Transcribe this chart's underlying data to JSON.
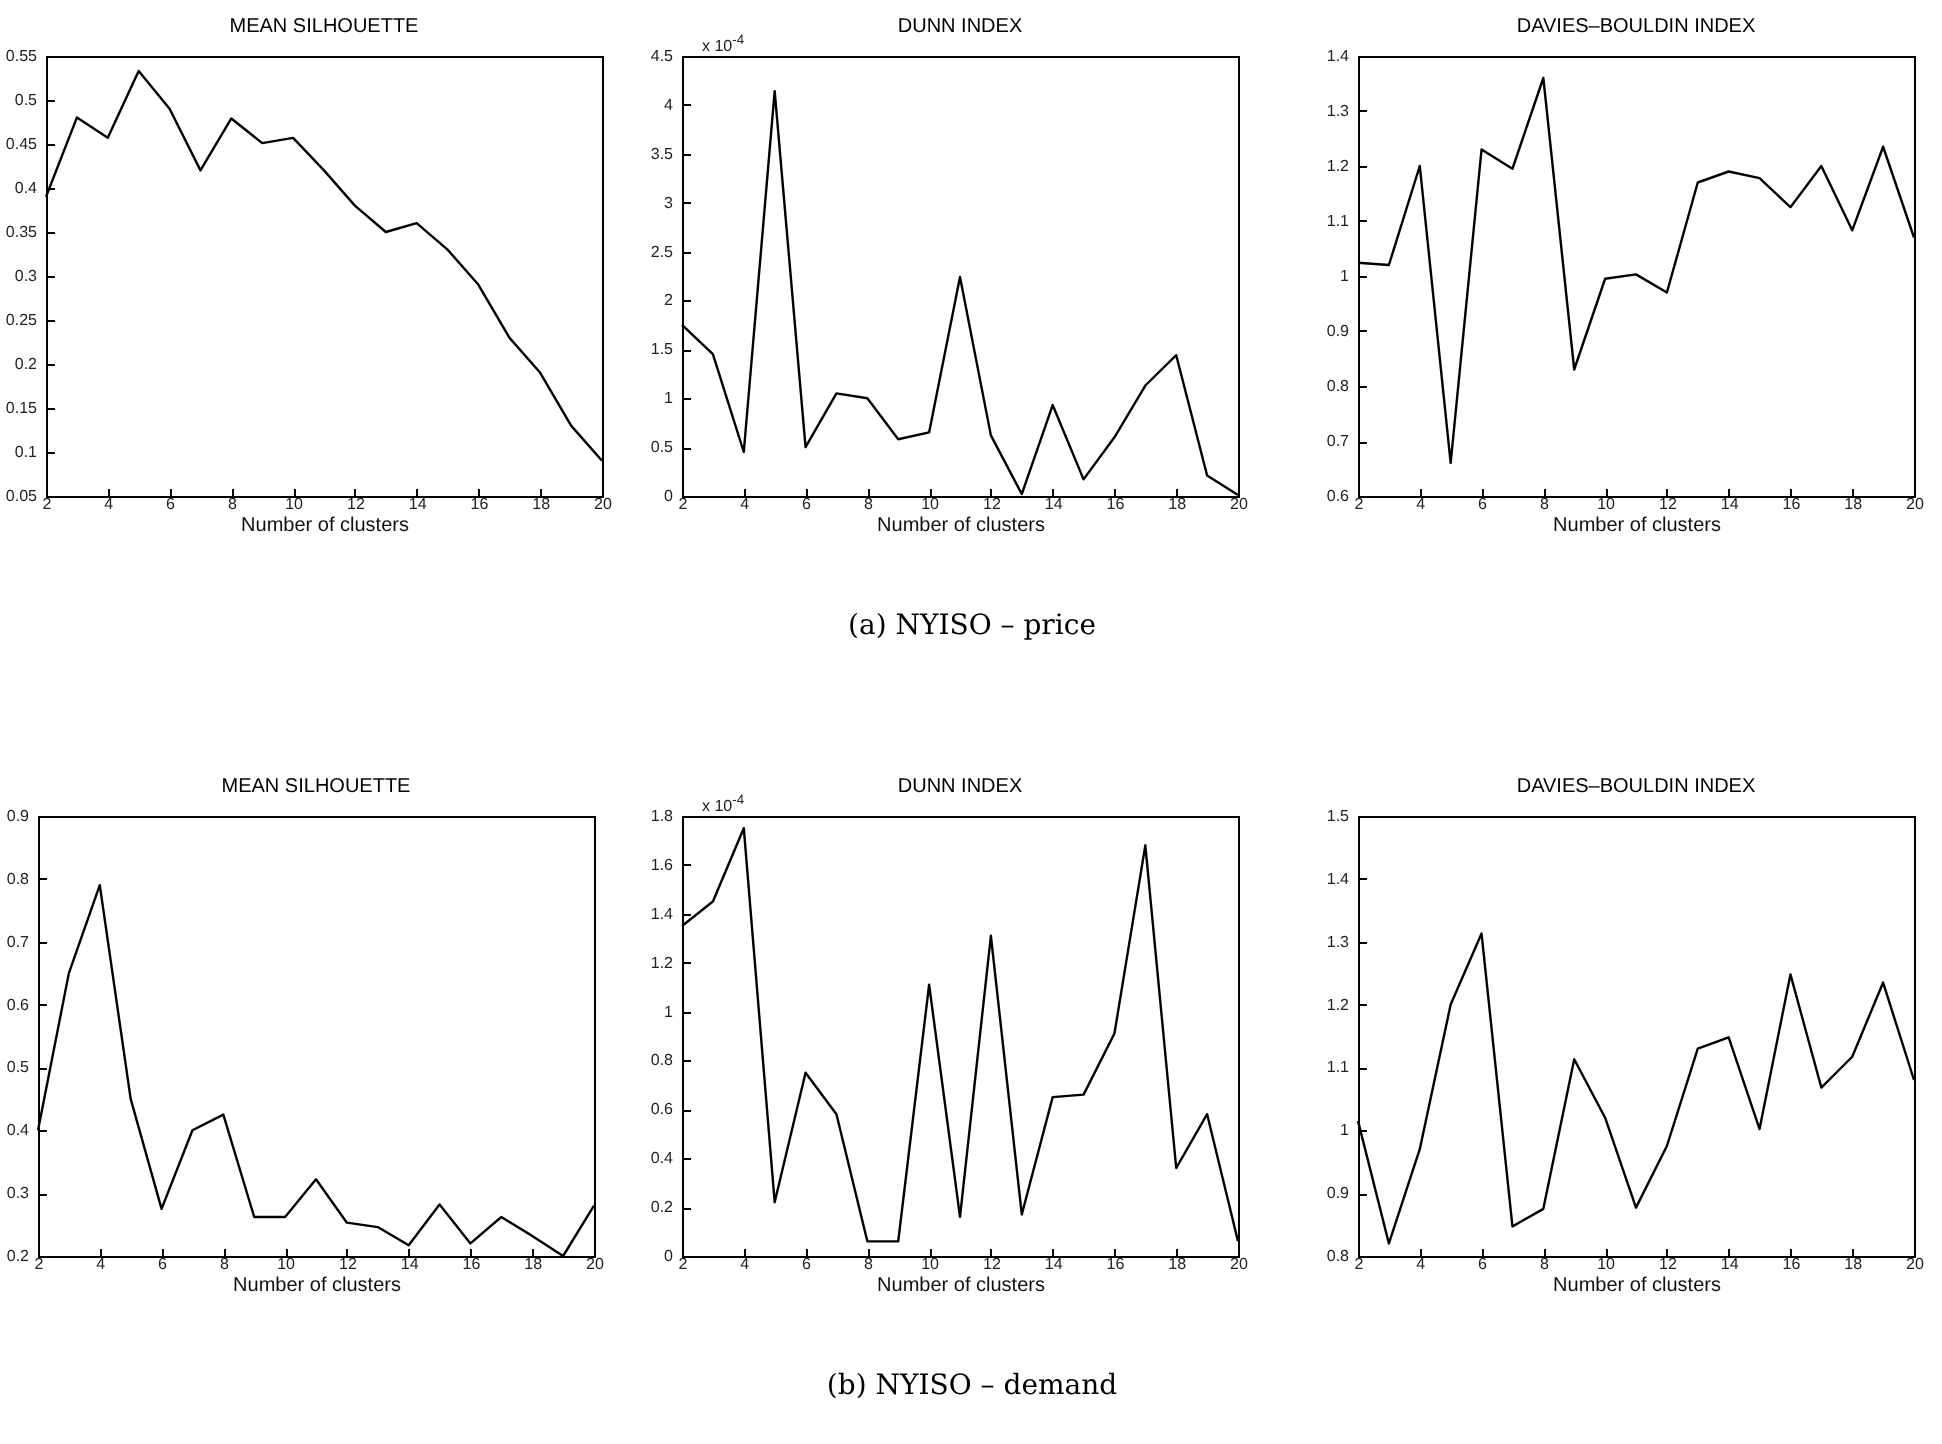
{
  "chart_data": [
    {
      "type": "line",
      "title": "MEAN SILHOUETTE",
      "xlabel": "Number of clusters",
      "x": [
        2,
        3,
        4,
        5,
        6,
        7,
        8,
        9,
        10,
        11,
        12,
        13,
        14,
        15,
        16,
        17,
        18,
        19,
        20
      ],
      "xlim": [
        2,
        20
      ],
      "xticks": [
        2,
        4,
        6,
        8,
        10,
        12,
        14,
        16,
        18,
        20
      ],
      "ylim": [
        0.05,
        0.55
      ],
      "yticks": [
        0.05,
        0.1,
        0.15,
        0.2,
        0.25,
        0.3,
        0.35,
        0.4,
        0.45,
        0.5,
        0.55
      ],
      "series": [
        {
          "color": "#000000",
          "values": [
            0.39,
            0.48,
            0.457,
            0.533,
            0.49,
            0.42,
            0.479,
            0.451,
            0.457,
            0.42,
            0.38,
            0.35,
            0.36,
            0.33,
            0.29,
            0.23,
            0.19,
            0.13,
            0.09
          ]
        }
      ]
    },
    {
      "type": "line",
      "title": "DUNN INDEX",
      "xlabel": "Number of clusters",
      "annotations": [
        "x 10$^{-4}$",
        "(a) NYISO – price"
      ],
      "x": [
        2,
        3,
        4,
        5,
        6,
        7,
        8,
        9,
        10,
        11,
        12,
        13,
        14,
        15,
        16,
        17,
        18,
        19,
        20
      ],
      "xlim": [
        2,
        20
      ],
      "xticks": [
        2,
        4,
        6,
        8,
        10,
        12,
        14,
        16,
        18,
        20
      ],
      "ylim": [
        0,
        4.5
      ],
      "yticks": [
        0,
        0.5,
        1,
        1.5,
        2,
        2.5,
        3,
        3.5,
        4,
        4.5
      ],
      "series": [
        {
          "color": "#000000",
          "values": [
            1.75,
            1.45,
            0.45,
            4.14,
            0.5,
            1.05,
            1.0,
            0.58,
            0.65,
            2.24,
            0.62,
            0.02,
            0.93,
            0.17,
            0.6,
            1.13,
            1.44,
            0.21,
            0.01
          ]
        }
      ]
    },
    {
      "type": "line",
      "title": "DAVIES–BOULDIN INDEX",
      "xlabel": "Number of clusters",
      "x": [
        2,
        3,
        4,
        5,
        6,
        7,
        8,
        9,
        10,
        11,
        12,
        13,
        14,
        15,
        16,
        17,
        18,
        19,
        20
      ],
      "xlim": [
        2,
        20
      ],
      "xticks": [
        2,
        4,
        6,
        8,
        10,
        12,
        14,
        16,
        18,
        20
      ],
      "ylim": [
        0.6,
        1.4
      ],
      "yticks": [
        0.6,
        0.7,
        0.8,
        0.9,
        1,
        1.1,
        1.2,
        1.3,
        1.4
      ],
      "series": [
        {
          "color": "#000000",
          "values": [
            1.024,
            1.02,
            1.2,
            0.66,
            1.23,
            1.195,
            1.36,
            0.83,
            0.995,
            1.003,
            0.97,
            1.17,
            1.19,
            1.178,
            1.125,
            1.2,
            1.083,
            1.235,
            1.07
          ]
        }
      ]
    },
    {
      "type": "line",
      "title": "MEAN SILHOUETTE",
      "xlabel": "Number of clusters",
      "x": [
        2,
        3,
        4,
        5,
        6,
        7,
        8,
        9,
        10,
        11,
        12,
        13,
        14,
        15,
        16,
        17,
        18,
        19,
        20
      ],
      "xlim": [
        2,
        20
      ],
      "xticks": [
        2,
        4,
        6,
        8,
        10,
        12,
        14,
        16,
        18,
        20
      ],
      "ylim": [
        0.2,
        0.9
      ],
      "yticks": [
        0.2,
        0.3,
        0.4,
        0.5,
        0.6,
        0.7,
        0.8,
        0.9
      ],
      "series": [
        {
          "color": "#000000",
          "values": [
            0.4,
            0.65,
            0.79,
            0.45,
            0.275,
            0.4,
            0.425,
            0.262,
            0.262,
            0.322,
            0.253,
            0.246,
            0.217,
            0.282,
            0.22,
            0.262,
            0.232,
            0.2,
            0.28
          ]
        }
      ]
    },
    {
      "type": "line",
      "title": "DUNN INDEX",
      "xlabel": "Number of clusters",
      "annotations": [
        "x 10$^{-4}$",
        "(b) NYISO – demand"
      ],
      "x": [
        2,
        3,
        4,
        5,
        6,
        7,
        8,
        9,
        10,
        11,
        12,
        13,
        14,
        15,
        16,
        17,
        18,
        19,
        20
      ],
      "xlim": [
        2,
        20
      ],
      "xticks": [
        2,
        4,
        6,
        8,
        10,
        12,
        14,
        16,
        18,
        20
      ],
      "ylim": [
        0,
        1.8
      ],
      "yticks": [
        0,
        0.2,
        0.4,
        0.6,
        0.8,
        1,
        1.2,
        1.4,
        1.6,
        1.8
      ],
      "series": [
        {
          "color": "#000000",
          "values": [
            1.35,
            1.45,
            1.75,
            0.22,
            0.75,
            0.58,
            0.06,
            0.06,
            1.11,
            0.16,
            1.31,
            0.17,
            0.65,
            0.66,
            0.91,
            1.68,
            0.36,
            0.58,
            0.06
          ]
        }
      ]
    },
    {
      "type": "line",
      "title": "DAVIES–BOULDIN INDEX",
      "xlabel": "Number of clusters",
      "x": [
        2,
        3,
        4,
        5,
        6,
        7,
        8,
        9,
        10,
        11,
        12,
        13,
        14,
        15,
        16,
        17,
        18,
        19,
        20
      ],
      "xlim": [
        2,
        20
      ],
      "xticks": [
        2,
        4,
        6,
        8,
        10,
        12,
        14,
        16,
        18,
        20
      ],
      "ylim": [
        0.8,
        1.5
      ],
      "yticks": [
        0.8,
        0.9,
        1,
        1.1,
        1.2,
        1.3,
        1.4,
        1.5
      ],
      "series": [
        {
          "color": "#000000",
          "values": [
            1.015,
            0.82,
            0.97,
            1.2,
            1.313,
            0.847,
            0.875,
            1.113,
            1.02,
            0.877,
            0.975,
            1.13,
            1.148,
            1.002,
            1.248,
            1.068,
            1.117,
            1.235,
            1.08
          ]
        }
      ]
    }
  ]
}
